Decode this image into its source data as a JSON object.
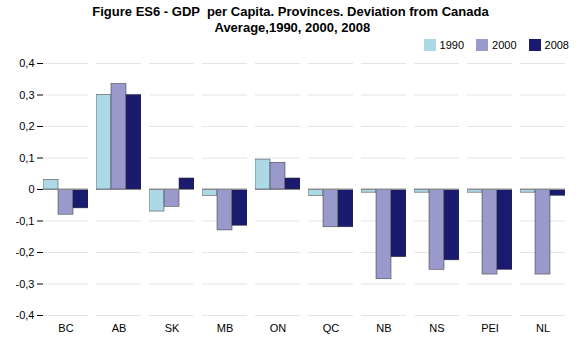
{
  "chart_data": {
    "type": "bar",
    "title": "Figure ES6 - GDP  per Capita. Provinces. Deviation from Canada\n Average,1990, 2000, 2008",
    "categories": [
      "BC",
      "AB",
      "SK",
      "MB",
      "ON",
      "QC",
      "NB",
      "NS",
      "PEI",
      "NL"
    ],
    "series": [
      {
        "name": "1990",
        "color": "#add8e6",
        "values": [
          0.03,
          0.3,
          -0.07,
          -0.02,
          0.095,
          -0.02,
          -0.01,
          -0.01,
          -0.01,
          -0.01
        ]
      },
      {
        "name": "2000",
        "color": "#9999cc",
        "values": [
          -0.08,
          0.335,
          -0.055,
          -0.13,
          0.085,
          -0.12,
          -0.285,
          -0.255,
          -0.27,
          -0.27
        ]
      },
      {
        "name": "2008",
        "color": "#1a1a6e",
        "values": [
          -0.06,
          0.3,
          0.035,
          -0.115,
          0.035,
          -0.12,
          -0.215,
          -0.225,
          -0.255,
          -0.02
        ]
      }
    ],
    "ylim": [
      -0.4,
      0.4
    ],
    "yticks": [
      {
        "value": -0.4,
        "label": "-0,4"
      },
      {
        "value": -0.3,
        "label": "-0,3"
      },
      {
        "value": -0.2,
        "label": "-0,2"
      },
      {
        "value": -0.1,
        "label": "-0,1"
      },
      0,
      {
        "value": 0.1,
        "label": "0,1"
      },
      {
        "value": 0.2,
        "label": "0,2"
      },
      {
        "value": 0.3,
        "label": "0,3"
      },
      {
        "value": 0.4,
        "label": "0,4"
      }
    ],
    "grid": true,
    "legend": "upper right"
  }
}
